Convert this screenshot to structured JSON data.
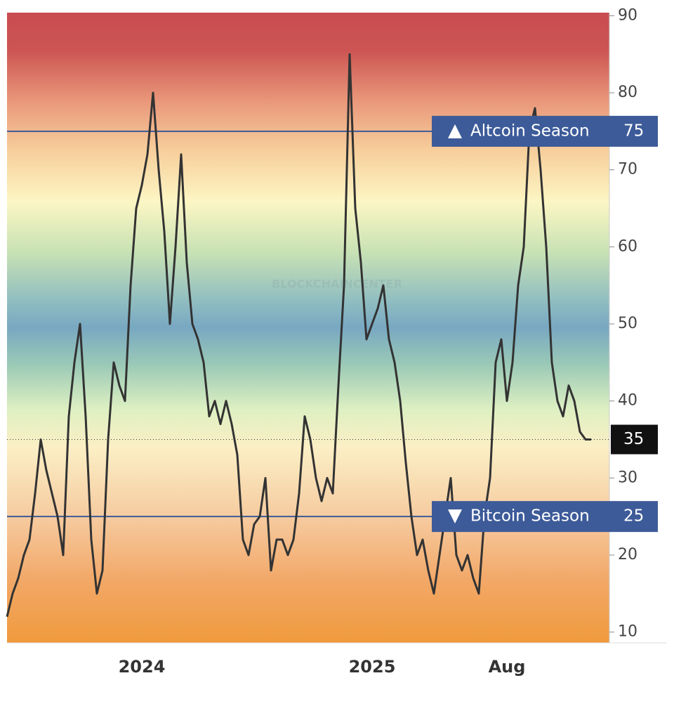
{
  "chart_data": {
    "type": "line",
    "watermark": "BLOCKCHAINCENTER",
    "categories": [
      null,
      null,
      null,
      null,
      null,
      null,
      null,
      null,
      null,
      null,
      null,
      null,
      null,
      null,
      null,
      null,
      null,
      null,
      null,
      null,
      null,
      null,
      null,
      null,
      "2024",
      null,
      null,
      null,
      null,
      null,
      null,
      null,
      null,
      null,
      null,
      null,
      null,
      null,
      null,
      null,
      null,
      null,
      null,
      null,
      null,
      null,
      null,
      null,
      null,
      null,
      null,
      null,
      null,
      null,
      null,
      null,
      null,
      null,
      null,
      null,
      null,
      null,
      null,
      null,
      null,
      "2025",
      null,
      null,
      null,
      null,
      null,
      null,
      null,
      null,
      null,
      null,
      null,
      null,
      null,
      null,
      null,
      null,
      null,
      null,
      null,
      null,
      null,
      null,
      null,
      "Aug",
      null,
      null,
      null,
      null,
      null,
      null,
      null,
      null,
      null,
      null,
      null,
      null,
      null,
      null,
      null
    ],
    "values": [
      12,
      15,
      17,
      20,
      22,
      28,
      35,
      31,
      28,
      25,
      20,
      38,
      45,
      50,
      38,
      22,
      15,
      18,
      35,
      45,
      42,
      40,
      55,
      65,
      68,
      72,
      80,
      70,
      62,
      50,
      60,
      72,
      58,
      50,
      48,
      45,
      38,
      40,
      37,
      40,
      37,
      33,
      22,
      20,
      24,
      25,
      30,
      18,
      22,
      22,
      20,
      22,
      28,
      38,
      35,
      30,
      27,
      30,
      28,
      42,
      55,
      85,
      65,
      58,
      48,
      50,
      52,
      55,
      48,
      45,
      40,
      32,
      25,
      20,
      22,
      18,
      15,
      20,
      25,
      30,
      20,
      18,
      20,
      17,
      15,
      25,
      30,
      45,
      48,
      40,
      45,
      55,
      60,
      75,
      78,
      70,
      60,
      45,
      40,
      38,
      42,
      40,
      36,
      35,
      35
    ],
    "color": "#333333",
    "ylim": [
      8.6,
      90.4
    ],
    "yticks": [
      10,
      20,
      30,
      40,
      50,
      60,
      70,
      80,
      90
    ],
    "annotations": [
      {
        "label": "Altcoin Season",
        "value": 75,
        "color": "#3d5b99"
      },
      {
        "label": "Bitcoin Season",
        "value": 25,
        "color": "#3d5b99"
      }
    ]
  }
}
